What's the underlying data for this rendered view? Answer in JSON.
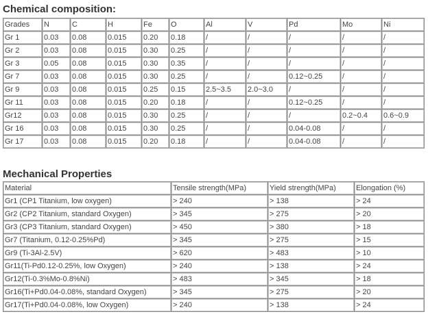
{
  "chemical": {
    "title": "Chemical composition:",
    "headers": [
      "Grades",
      "N",
      "C",
      "H",
      "Fe",
      "O",
      "Al",
      "V",
      "Pd",
      "Mo",
      "Ni"
    ],
    "rows": [
      [
        "Gr 1",
        "0.03",
        "0.08",
        "0.015",
        "0.20",
        "0.18",
        "/",
        "/",
        "/",
        "/",
        "/"
      ],
      [
        "Gr 2",
        "0.03",
        "0.08",
        "0.015",
        "0.30",
        "0.25",
        "/",
        "/",
        "/",
        "/",
        "/"
      ],
      [
        "Gr 3",
        "0.05",
        "0.08",
        "0.015",
        "0.30",
        "0.35",
        "/",
        "/",
        "/",
        "/",
        "/"
      ],
      [
        "Gr 7",
        "0.03",
        "0.08",
        "0.015",
        "0.30",
        "0.25",
        "/",
        "/",
        "0.12~0.25",
        "/",
        "/"
      ],
      [
        "Gr 9",
        "0.03",
        "0.08",
        "0.015",
        "0.25",
        "0.15",
        "2.5~3.5",
        "2.0~3.0",
        "/",
        "/",
        "/"
      ],
      [
        "Gr 11",
        "0.03",
        "0.08",
        "0.015",
        "0.20",
        "0.18",
        "/",
        "/",
        "0.12~0.25",
        "/",
        "/"
      ],
      [
        "Gr12",
        "0.03",
        "0.08",
        "0.015",
        "0.30",
        "0.25",
        "/",
        "/",
        "/",
        "0.2~0.4",
        "0.6~0.9"
      ],
      [
        "Gr 16",
        "0.03",
        "0.08",
        "0.015",
        "0.30",
        "0.25",
        "/",
        "/",
        "0.04-0.08",
        "/",
        "/"
      ],
      [
        "Gr 17",
        "0.03",
        "0.08",
        "0.015",
        "0.20",
        "0.18",
        "/",
        "/",
        "0.04-0.08",
        "/",
        "/"
      ]
    ]
  },
  "mechanical": {
    "title": "Mechanical Properties",
    "headers": [
      "Material",
      "Tensile strength(MPa)",
      "Yield strength(MPa)",
      "Elongation (%)"
    ],
    "rows": [
      [
        "Gr1 (CP1 Titanium, low oxygen)",
        "> 240",
        "> 138",
        "> 24"
      ],
      [
        "Gr2 (CP2 Titanium, standard Oxygen)",
        "> 345",
        "> 275",
        "> 20"
      ],
      [
        "Gr3 (CP3 Titanium, standard Oxygen)",
        "> 450",
        "> 380",
        "> 18"
      ],
      [
        "Gr7 (Titanium, 0.12-0.25%Pd)",
        "> 345",
        "> 275",
        "> 15"
      ],
      [
        "Gr9 (Ti-3Al-2.5V)",
        "> 620",
        "> 483",
        "> 10"
      ],
      [
        "Gr11(Ti-Pd0.12-0.25%, low Oxygen)",
        "> 240",
        "> 138",
        "> 24"
      ],
      [
        "Gr12(Ti-0.3%Mo-0.8%Ni)",
        "> 483",
        "> 345",
        "> 18"
      ],
      [
        "Gr16(Ti+Pd0.04-0.08%, standard Oxygen)",
        "> 345",
        "> 275",
        "> 20"
      ],
      [
        "Gr17(Ti+Pd0.04-0.08%, low Oxygen)",
        "> 240",
        "> 138",
        "> 24"
      ]
    ]
  }
}
